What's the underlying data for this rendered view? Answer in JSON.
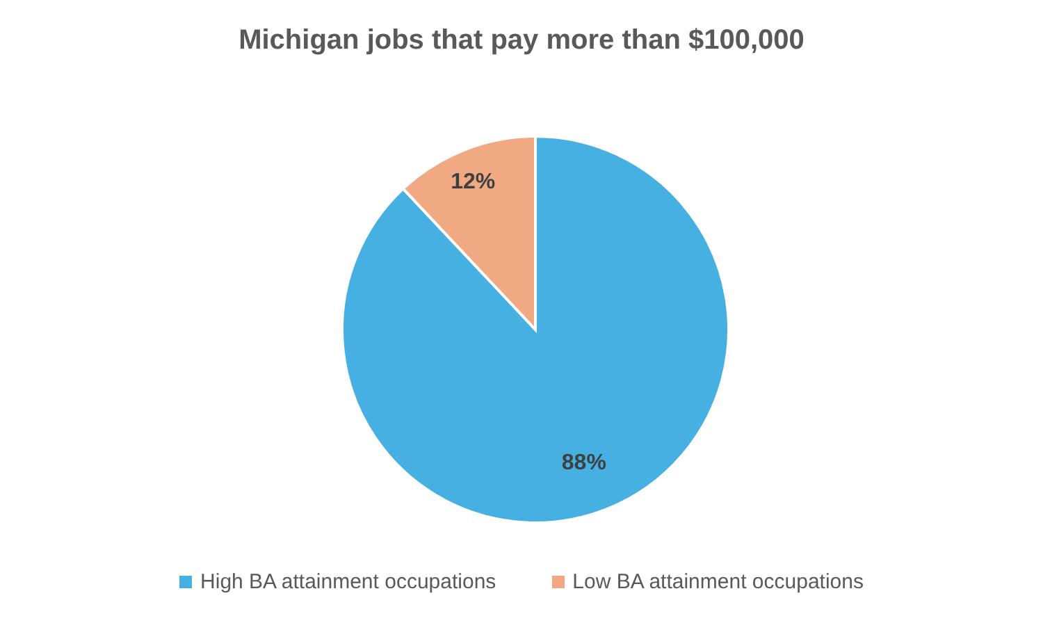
{
  "chart_data": {
    "type": "pie",
    "title": "Michigan jobs that pay more than $100,000",
    "categories": [
      "High BA attainment occupations",
      "Low BA attainment occupations"
    ],
    "values": [
      88,
      12
    ],
    "colors": [
      "#45b0e1",
      "#f1a983"
    ],
    "value_labels": [
      "88%",
      "12%"
    ],
    "legend": "bottom"
  }
}
